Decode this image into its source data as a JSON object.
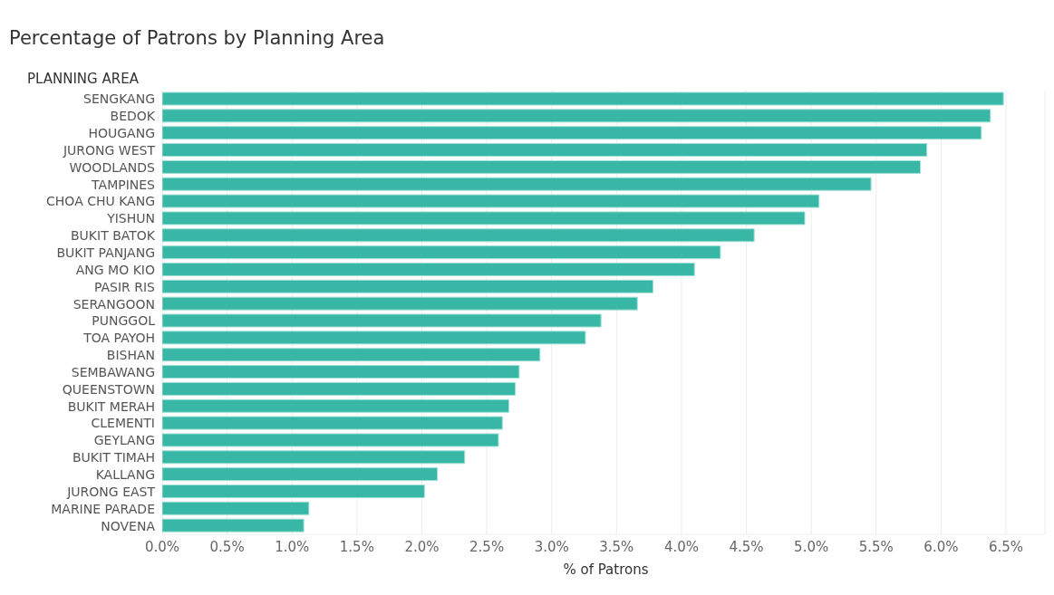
{
  "chart_data": {
    "type": "bar",
    "orientation": "horizontal",
    "title": "Percentage of Patrons by Planning Area",
    "ylabel": "PLANNING AREA",
    "xlabel": "% of Patrons",
    "categories": [
      "SENGKANG",
      "BEDOK",
      "HOUGANG",
      "JURONG WEST",
      "WOODLANDS",
      "TAMPINES",
      "CHOA CHU KANG",
      "YISHUN",
      "BUKIT BATOK",
      "BUKIT PANJANG",
      "ANG MO KIO",
      "PASIR RIS",
      "SERANGOON",
      "PUNGGOL",
      "TOA PAYOH",
      "BISHAN",
      "SEMBAWANG",
      "QUEENSTOWN",
      "BUKIT MERAH",
      "CLEMENTI",
      "GEYLANG",
      "BUKIT TIMAH",
      "KALLANG",
      "JURONG EAST",
      "MARINE PARADE",
      "NOVENA"
    ],
    "values": [
      6.48,
      6.38,
      6.31,
      5.89,
      5.84,
      5.46,
      5.06,
      4.95,
      4.56,
      4.3,
      4.1,
      3.78,
      3.66,
      3.38,
      3.26,
      2.91,
      2.75,
      2.72,
      2.67,
      2.62,
      2.59,
      2.33,
      2.12,
      2.02,
      1.13,
      1.09
    ],
    "color": "#38b6a6",
    "xlim": [
      0,
      6.8
    ],
    "xticks": [
      {
        "value": 0,
        "label": "0.0%"
      },
      {
        "value": 0.5,
        "label": "0.5%"
      },
      {
        "value": 1,
        "label": "1.0%"
      },
      {
        "value": 1.5,
        "label": "1.5%"
      },
      {
        "value": 2,
        "label": "2.0%"
      },
      {
        "value": 2.5,
        "label": "2.5%"
      },
      {
        "value": 3,
        "label": "3.0%"
      },
      {
        "value": 3.5,
        "label": "3.5%"
      },
      {
        "value": 4,
        "label": "4.0%"
      },
      {
        "value": 4.5,
        "label": "4.5%"
      },
      {
        "value": 5,
        "label": "5.0%"
      },
      {
        "value": 5.5,
        "label": "5.5%"
      },
      {
        "value": 6,
        "label": "6.0%"
      },
      {
        "value": 6.5,
        "label": "6.5%"
      }
    ],
    "grid": "x",
    "legend": false
  }
}
